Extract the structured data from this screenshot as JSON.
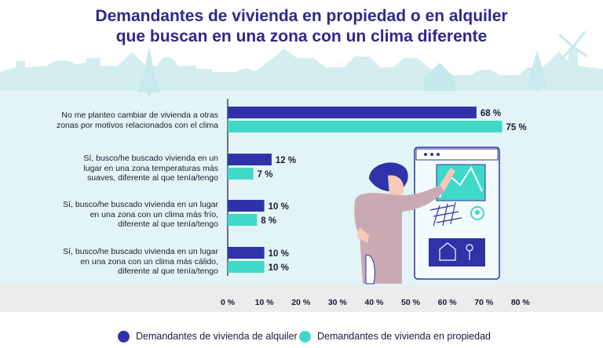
{
  "chart_data": {
    "type": "bar",
    "orientation": "horizontal",
    "title_line1": "Demandantes de vivienda en propiedad o en alquiler",
    "title_line2": "que buscan en una zona con un clima diferente",
    "categories": [
      [
        "No me planteo cambiar de vivienda a otras",
        "zonas por motivos relacionados con el clima"
      ],
      [
        "Sí, busco/he buscado vivienda en un",
        "lugar en una zona temperaturas más",
        "suaves, diferente al que tenía/tengo"
      ],
      [
        "Sí, busco/he buscado vivienda en un lugar",
        "en una zona con un clima más frío,",
        "diferente al que tenía/tengo"
      ],
      [
        "Sí, busco/he buscado vivienda en un lugar",
        "en una zona con un clima más cálido,",
        "diferente al que tenía/tengo"
      ]
    ],
    "series": [
      {
        "name": "Demandantes de vivienda de alquiler",
        "color": "#2f32a8",
        "values": [
          68,
          12,
          10,
          10
        ]
      },
      {
        "name": "Demandantes de vivienda en propiedad",
        "color": "#3fd9c8",
        "values": [
          75,
          7,
          8,
          10
        ]
      }
    ],
    "value_labels": [
      [
        "68 %",
        "12 %",
        "10 %",
        "10 %"
      ],
      [
        "75 %",
        "7 %",
        "8 %",
        "10 %"
      ]
    ],
    "x_ticks": [
      0,
      10,
      20,
      30,
      40,
      50,
      60,
      70,
      80
    ],
    "x_tick_labels": [
      "0 %",
      "10 %",
      "20 %",
      "30 %",
      "40 %",
      "50 %",
      "60 %",
      "70 %",
      "80 %"
    ],
    "xlim": [
      0,
      80
    ],
    "legend_position": "bottom"
  },
  "legend": {
    "alquiler": "Demandantes de vivienda de alquiler",
    "propiedad": "Demandantes de vivienda en propiedad"
  }
}
